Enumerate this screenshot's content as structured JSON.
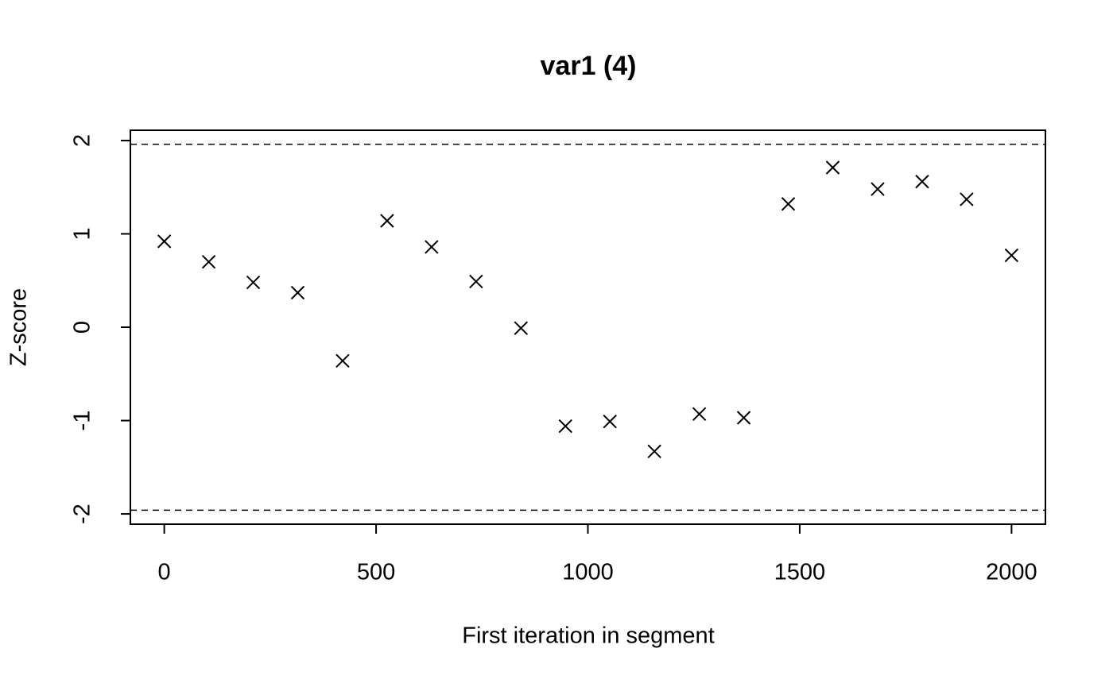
{
  "chart_data": {
    "type": "scatter",
    "title": "var1 (4)",
    "x_label": "First iteration in segment",
    "y_label": "Z-score",
    "x": [
      0,
      105,
      210,
      315,
      421,
      526,
      631,
      736,
      842,
      947,
      1052,
      1157,
      1263,
      1368,
      1473,
      1578,
      1684,
      1789,
      1894,
      2000
    ],
    "series": [
      {
        "name": "var1",
        "color": "#000000",
        "values": [
          0.92,
          0.7,
          0.48,
          0.37,
          -0.36,
          1.14,
          0.86,
          0.49,
          -0.01,
          -1.06,
          -1.01,
          -1.33,
          -0.93,
          -0.97,
          1.32,
          1.71,
          1.48,
          1.56,
          1.37,
          0.77
        ]
      }
    ],
    "reference_lines": [
      -1.96,
      1.96
    ],
    "xlim": [
      -80,
      2080
    ],
    "ylim": [
      -2.11,
      2.11
    ],
    "xticks": [
      0,
      500,
      1000,
      1500,
      2000
    ],
    "yticks": [
      -2,
      -1,
      0,
      1,
      2
    ]
  }
}
